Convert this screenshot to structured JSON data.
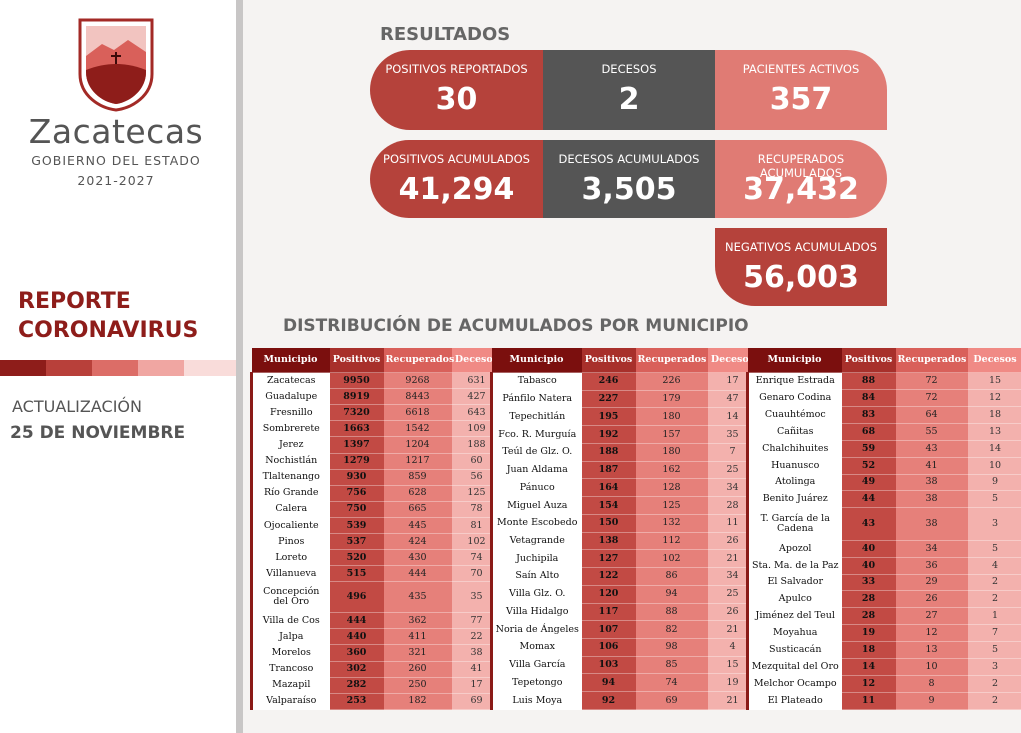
{
  "header": {
    "brand": "Zacatecas",
    "subtitle": "GOBIERNO DEL ESTADO",
    "period": "2021-2027"
  },
  "report": {
    "title_lines": [
      "REPORTE",
      "CORONAVIRUS"
    ],
    "update_label": "ACTUALIZACIÓN",
    "update_date": "25 DE NOVIEMBRE"
  },
  "results": {
    "title": "RESULTADOS",
    "cards": [
      {
        "label": "POSITIVOS REPORTADOS",
        "value": "30"
      },
      {
        "label": "DECESOS",
        "value": "2"
      },
      {
        "label": "PACIENTES ACTIVOS",
        "value": "357"
      },
      {
        "label": "POSITIVOS ACUMULADOS",
        "value": "41,294"
      },
      {
        "label": "DECESOS ACUMULADOS",
        "value": "3,505"
      },
      {
        "label": "RECUPERADOS ACUMULADOS",
        "value": "37,432"
      },
      {
        "label": "NEGATIVOS ACUMULADOS",
        "value": "56,003"
      }
    ]
  },
  "distribution": {
    "title": "DISTRIBUCIÓN DE ACUMULADOS POR MUNICIPIO",
    "columns": [
      "Municipio",
      "Positivos",
      "Recuperados",
      "Decesos"
    ],
    "tables": [
      {
        "rows": [
          [
            "Zacatecas",
            9950,
            9268,
            631
          ],
          [
            "Guadalupe",
            8919,
            8443,
            427
          ],
          [
            "Fresnillo",
            7320,
            6618,
            643
          ],
          [
            "Sombrerete",
            1663,
            1542,
            109
          ],
          [
            "Jerez",
            1397,
            1204,
            188
          ],
          [
            "Nochistlán",
            1279,
            1217,
            60
          ],
          [
            "Tlaltenango",
            930,
            859,
            56
          ],
          [
            "Río Grande",
            756,
            628,
            125
          ],
          [
            "Calera",
            750,
            665,
            78
          ],
          [
            "Ojocaliente",
            539,
            445,
            81
          ],
          [
            "Pinos",
            537,
            424,
            102
          ],
          [
            "Loreto",
            520,
            430,
            74
          ],
          [
            "Villanueva",
            515,
            444,
            70
          ],
          [
            "Concepción del Oro",
            496,
            435,
            35
          ],
          [
            "Villa de Cos",
            444,
            362,
            77
          ],
          [
            "Jalpa",
            440,
            411,
            22
          ],
          [
            "Morelos",
            360,
            321,
            38
          ],
          [
            "Trancoso",
            302,
            260,
            41
          ],
          [
            "Mazapil",
            282,
            250,
            17
          ],
          [
            "Valparaíso",
            253,
            182,
            69
          ]
        ]
      },
      {
        "rows": [
          [
            "Tabasco",
            246,
            226,
            17
          ],
          [
            "Pánfilo Natera",
            227,
            179,
            47
          ],
          [
            "Tepechitlán",
            195,
            180,
            14
          ],
          [
            "Fco. R. Murguía",
            192,
            157,
            35
          ],
          [
            "Teúl de Glz. O.",
            188,
            180,
            7
          ],
          [
            "Juan Aldama",
            187,
            162,
            25
          ],
          [
            "Pánuco",
            164,
            128,
            34
          ],
          [
            "Miguel Auza",
            154,
            125,
            28
          ],
          [
            "Monte Escobedo",
            150,
            132,
            11
          ],
          [
            "Vetagrande",
            138,
            112,
            26
          ],
          [
            "Juchipila",
            127,
            102,
            21
          ],
          [
            "Saín Alto",
            122,
            86,
            34
          ],
          [
            "Villa Glz. O.",
            120,
            94,
            25
          ],
          [
            "Villa Hidalgo",
            117,
            88,
            26
          ],
          [
            "Noria de Ángeles",
            107,
            82,
            21
          ],
          [
            "Momax",
            106,
            98,
            4
          ],
          [
            "Villa García",
            103,
            85,
            15
          ],
          [
            "Tepetongo",
            94,
            74,
            19
          ],
          [
            "Luis Moya",
            92,
            69,
            21
          ]
        ]
      },
      {
        "rows": [
          [
            "Enrique Estrada",
            88,
            72,
            15
          ],
          [
            "Genaro Codina",
            84,
            72,
            12
          ],
          [
            "Cuauhtémoc",
            83,
            64,
            18
          ],
          [
            "Cañitas",
            68,
            55,
            13
          ],
          [
            "Chalchihuites",
            59,
            43,
            14
          ],
          [
            "Huanusco",
            52,
            41,
            10
          ],
          [
            "Atolinga",
            49,
            38,
            9
          ],
          [
            "Benito Juárez",
            44,
            38,
            5
          ],
          [
            "T. García de la Cadena",
            43,
            38,
            3
          ],
          [
            "Apozol",
            40,
            34,
            5
          ],
          [
            "Sta. Ma. de la Paz",
            40,
            36,
            4
          ],
          [
            "El Salvador",
            33,
            29,
            2
          ],
          [
            "Apulco",
            28,
            26,
            2
          ],
          [
            "Jiménez del Teul",
            28,
            27,
            1
          ],
          [
            "Moyahua",
            19,
            12,
            7
          ],
          [
            "Susticacán",
            18,
            13,
            5
          ],
          [
            "Mezquital del Oro",
            14,
            10,
            3
          ],
          [
            "Melchor Ocampo",
            12,
            8,
            2
          ],
          [
            "El Plateado",
            11,
            9,
            2
          ]
        ]
      }
    ]
  }
}
